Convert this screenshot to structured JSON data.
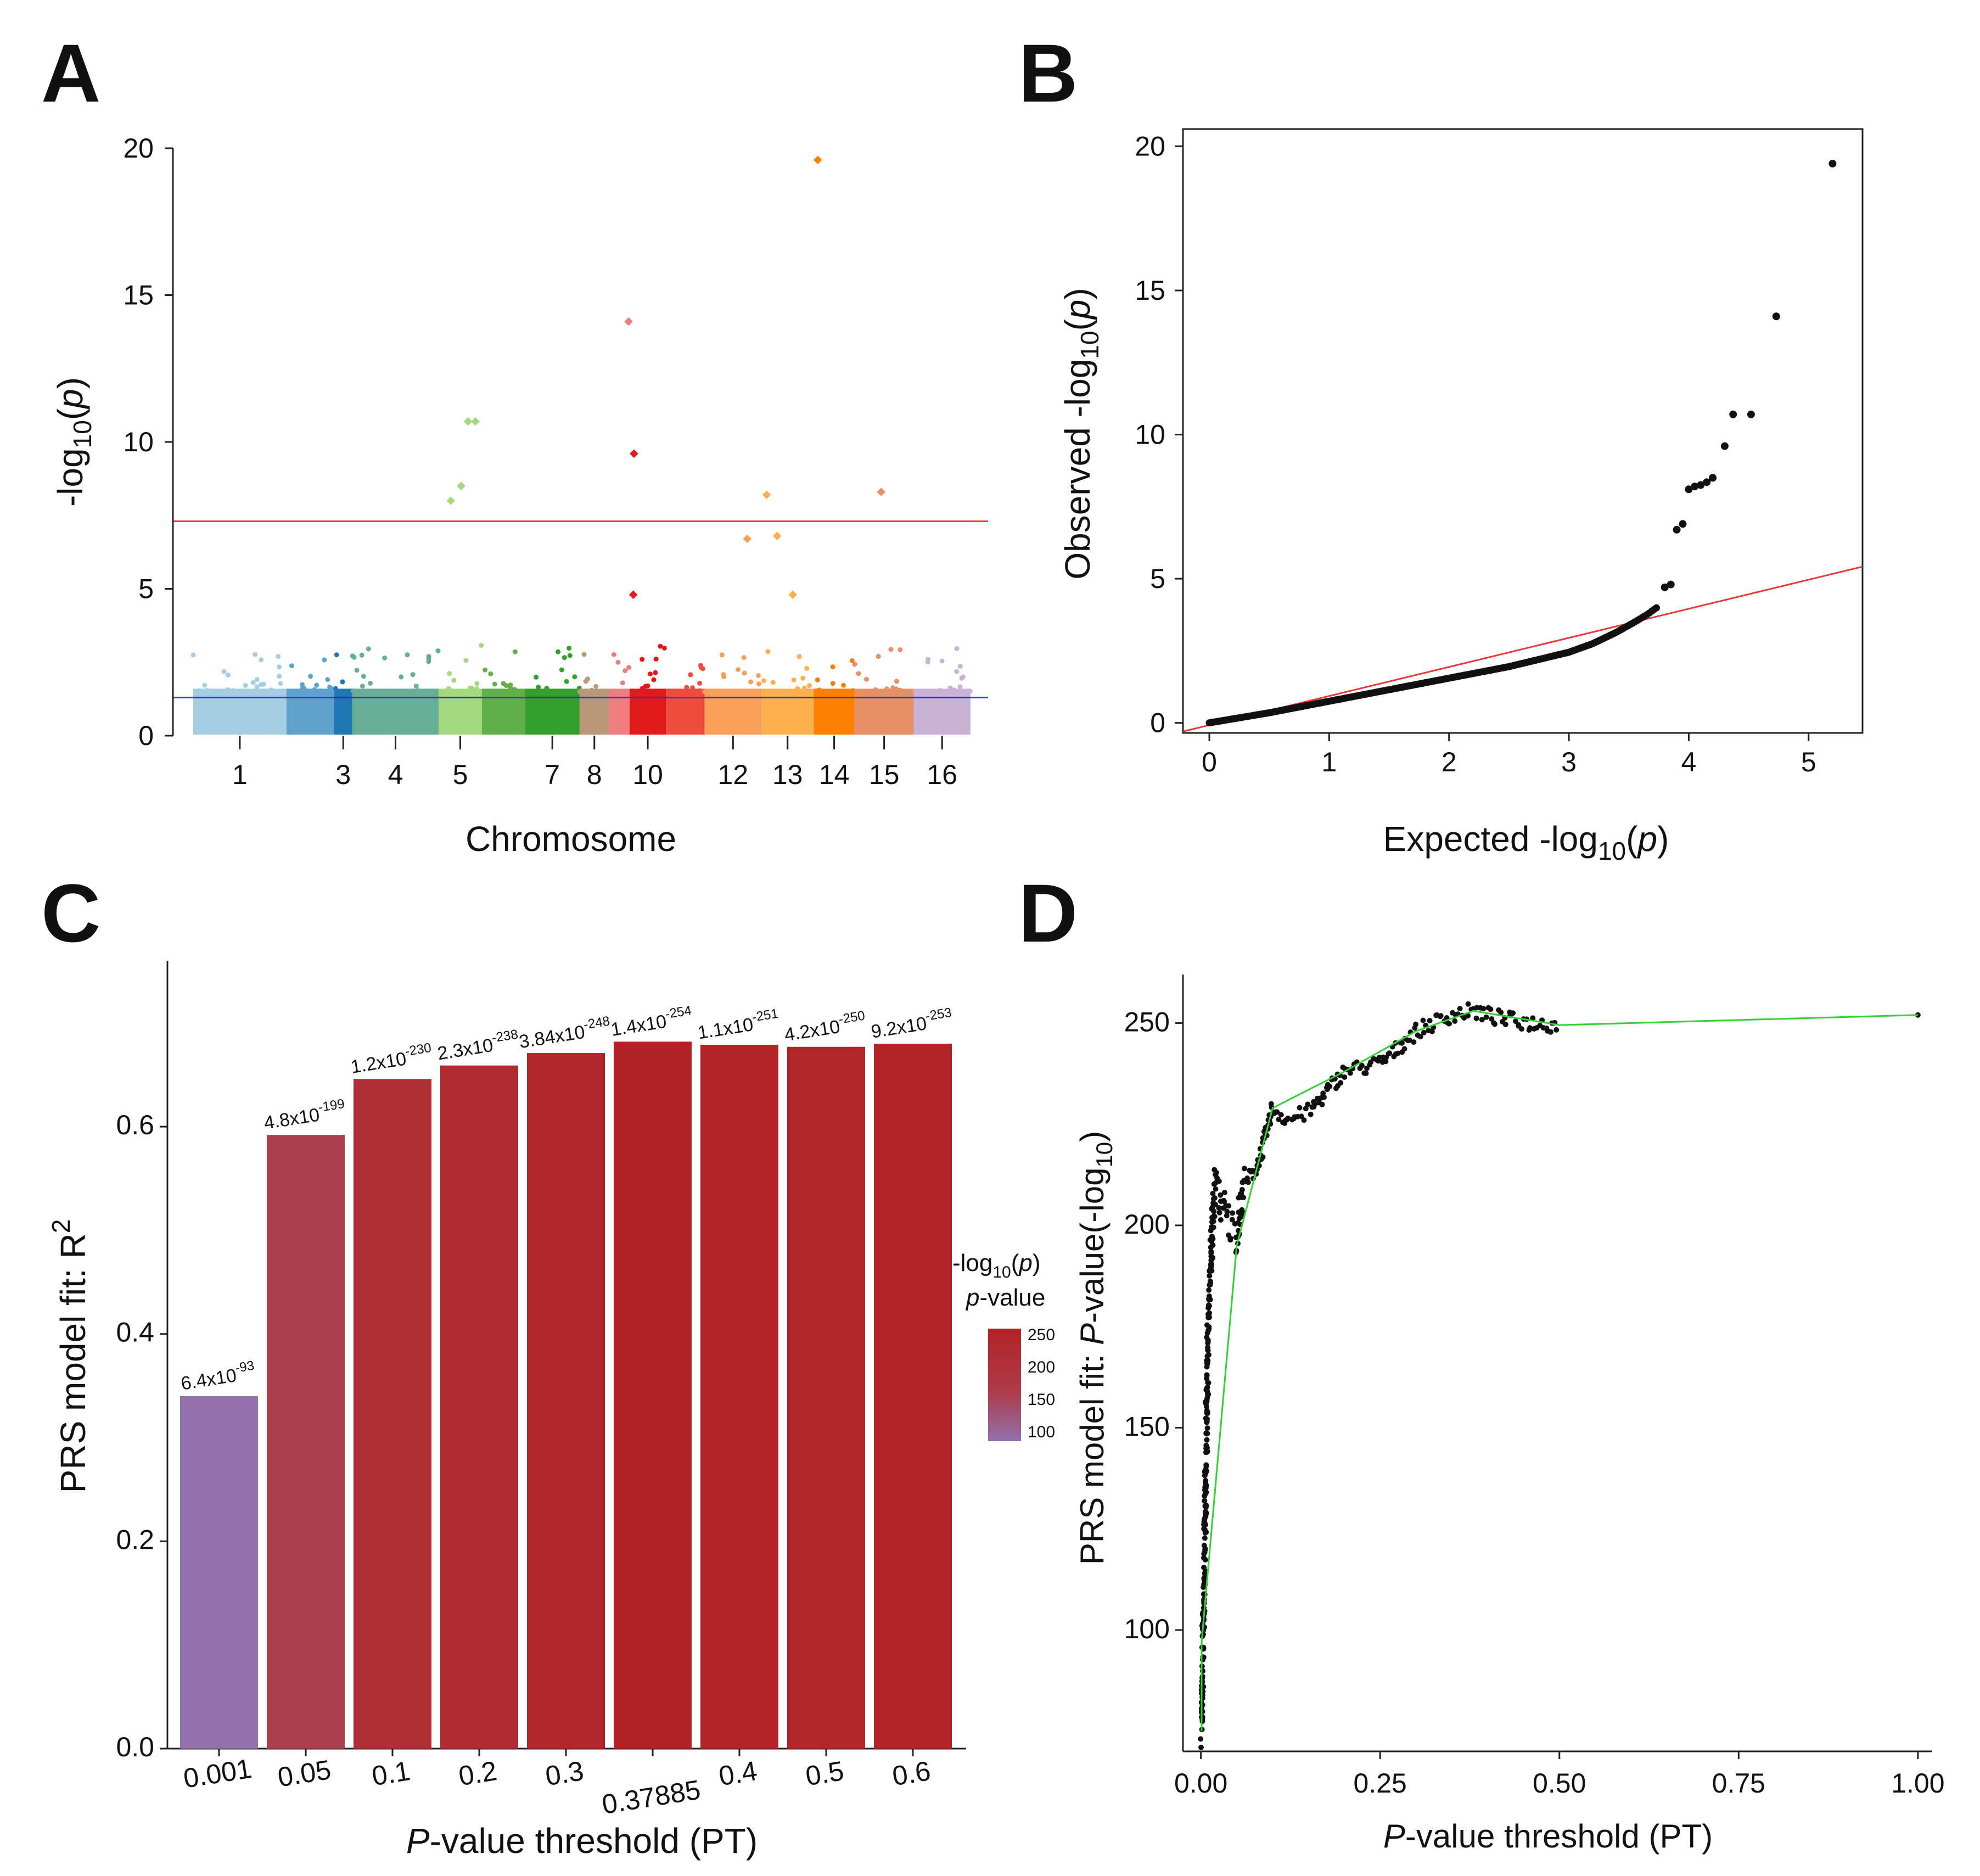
{
  "panels": {
    "A": {
      "label": "A",
      "ylabel": {
        "pre": "-log",
        "sub": "10",
        "mid": "(",
        "it": "p",
        "post": ")"
      },
      "xlabel": "Chromosome"
    },
    "B": {
      "label": "B",
      "ylabel": {
        "pre": "Observed -log",
        "sub": "10",
        "mid": "(",
        "it": "p",
        "post": ")"
      },
      "xlabel": {
        "pre": "Expected -log",
        "sub": "10",
        "mid": "(",
        "it": "p",
        "post": ")"
      }
    },
    "C": {
      "label": "C",
      "ylabel": {
        "pre": "PRS model fit: R",
        "sup": "2"
      },
      "xlabel": {
        "it": "P",
        "post": "-value threshold (PT)"
      },
      "legend": {
        "line1_pre": "-log",
        "line1_sub": "10",
        "line1_mid": "(",
        "line1_it": "p",
        "line1_post": ")",
        "line2_it": "p",
        "line2_post": "-value",
        "ticks": [
          "250",
          "200",
          "150",
          "100"
        ]
      }
    },
    "D": {
      "label": "D",
      "ylabel": {
        "pre": "PRS model fit: ",
        "it": "P",
        "mid": "-value(-log",
        "sub": "10",
        "post": ")"
      },
      "xlabel": {
        "it": "P",
        "post": "-value threshold (PT)"
      }
    }
  },
  "chart_data": [
    {
      "panel": "A",
      "type": "scatter",
      "subtype": "manhattan",
      "xlabel": "Chromosome",
      "ylabel": "-log10(p)",
      "ylim": [
        0,
        20
      ],
      "yticks": [
        0,
        5,
        10,
        15,
        20
      ],
      "xticks": [
        "1",
        "3",
        "4",
        "5",
        "7",
        "8",
        "10",
        "12",
        "13",
        "14",
        "15",
        "16"
      ],
      "chromosomes": [
        "1",
        "2",
        "3",
        "4",
        "5",
        "6",
        "7",
        "8",
        "9",
        "10",
        "11",
        "12",
        "13",
        "14",
        "15",
        "16"
      ],
      "chrom_colors": [
        "#A6CEE3",
        "#5FA2CC",
        "#1F78B4",
        "#66AE96",
        "#A4D97F",
        "#61B04A",
        "#33A02C",
        "#B9987A",
        "#F07C80",
        "#E31A1C",
        "#EE4B3A",
        "#F99F59",
        "#FDB04F",
        "#FF7F00",
        "#E69068",
        "#CAB2D6"
      ],
      "chrom_widths": [
        4.1,
        2.1,
        0.8,
        3.8,
        1.9,
        1.9,
        2.4,
        1.3,
        0.9,
        1.6,
        1.7,
        2.5,
        2.3,
        1.8,
        2.6,
        2.5
      ],
      "peaks": [
        {
          "chrom": "5",
          "pos": 0.28,
          "p": 8.0
        },
        {
          "chrom": "5",
          "pos": 0.52,
          "p": 8.5
        },
        {
          "chrom": "5",
          "pos": 0.68,
          "p": 10.7
        },
        {
          "chrom": "5",
          "pos": 0.85,
          "p": 10.7
        },
        {
          "chrom": "9",
          "pos": 0.95,
          "p": 14.1
        },
        {
          "chrom": "10",
          "pos": 0.12,
          "p": 9.6
        },
        {
          "chrom": "10",
          "pos": 0.1,
          "p": 4.8
        },
        {
          "chrom": "12",
          "pos": 0.75,
          "p": 6.7
        },
        {
          "chrom": "13",
          "pos": 0.1,
          "p": 8.2
        },
        {
          "chrom": "13",
          "pos": 0.3,
          "p": 6.8
        },
        {
          "chrom": "13",
          "pos": 0.6,
          "p": 4.8
        },
        {
          "chrom": "14",
          "pos": 0.1,
          "p": 19.6
        },
        {
          "chrom": "15",
          "pos": 0.45,
          "p": 8.3
        }
      ],
      "hlines": [
        {
          "y": 7.3,
          "color": "#E8383B"
        },
        {
          "y": 1.3,
          "color": "#2E36C8"
        }
      ]
    },
    {
      "panel": "B",
      "type": "scatter",
      "subtype": "qq",
      "xlabel": "Expected -log10(p)",
      "ylabel": "Observed -log10(p)",
      "xlim": [
        -0.22,
        5.45
      ],
      "ylim": [
        -0.35,
        20.6
      ],
      "xticks": [
        0,
        1,
        2,
        3,
        4,
        5
      ],
      "yticks": [
        0,
        5,
        10,
        15,
        20
      ],
      "curve": [
        [
          0,
          0
        ],
        [
          0.5,
          0.35
        ],
        [
          1,
          0.75
        ],
        [
          1.5,
          1.15
        ],
        [
          2,
          1.55
        ],
        [
          2.5,
          1.95
        ],
        [
          3,
          2.45
        ],
        [
          3.2,
          2.75
        ],
        [
          3.4,
          3.15
        ],
        [
          3.55,
          3.5
        ],
        [
          3.65,
          3.75
        ],
        [
          3.75,
          4.05
        ]
      ],
      "outliers": [
        [
          3.8,
          4.7
        ],
        [
          3.85,
          4.8
        ],
        [
          3.9,
          6.7
        ],
        [
          3.95,
          6.9
        ],
        [
          4.0,
          8.1
        ],
        [
          4.05,
          8.2
        ],
        [
          4.1,
          8.25
        ],
        [
          4.15,
          8.35
        ],
        [
          4.2,
          8.5
        ],
        [
          4.3,
          9.6
        ],
        [
          4.37,
          10.7
        ],
        [
          4.52,
          10.7
        ],
        [
          4.73,
          14.1
        ],
        [
          5.2,
          19.4
        ]
      ],
      "diagonal": {
        "slope": 1,
        "intercept": 0,
        "color": "#E8383B"
      }
    },
    {
      "panel": "C",
      "type": "bar",
      "xlabel": "P-value threshold (PT)",
      "ylabel": "PRS model fit: R2",
      "ylim": [
        0,
        0.76
      ],
      "yticks": [
        "0.0",
        "0.2",
        "0.4",
        "0.6"
      ],
      "categories": [
        "0.001",
        "0.05",
        "0.1",
        "0.2",
        "0.3",
        "0.37885",
        "0.4",
        "0.5",
        "0.6"
      ],
      "values": [
        0.34,
        0.592,
        0.646,
        0.659,
        0.671,
        0.682,
        0.679,
        0.677,
        0.68
      ],
      "neglog10p": [
        92.2,
        198.3,
        229.9,
        237.6,
        247.4,
        253.9,
        251.0,
        249.4,
        252.0
      ],
      "labels": [
        {
          "base": "6.4x10",
          "exp": "-93"
        },
        {
          "base": "4.8x10",
          "exp": "-199"
        },
        {
          "base": "1.2x10",
          "exp": "-230"
        },
        {
          "base": "2.3x10",
          "exp": "-238"
        },
        {
          "base": "3.84x10",
          "exp": "-248"
        },
        {
          "base": "1.4x10",
          "exp": "-254"
        },
        {
          "base": "1.1x10",
          "exp": "-251"
        },
        {
          "base": "4.2x10",
          "exp": "-250"
        },
        {
          "base": "9.2x10",
          "exp": "-253"
        }
      ],
      "colorscale": {
        "low": "#9470AC",
        "mid": "#AC3F4E",
        "high": "#B22326",
        "domain": [
          92,
          254
        ]
      }
    },
    {
      "panel": "D",
      "type": "scatter",
      "subtype": "prsice_highres",
      "xlabel": "P-value threshold (PT)",
      "ylabel": "PRS model fit: P-value(-log10)",
      "xlim": [
        -0.025,
        1.02
      ],
      "ylim": [
        70,
        262
      ],
      "xticks": [
        "0.00",
        "0.25",
        "0.50",
        "0.75",
        "1.00"
      ],
      "yticks": [
        "100",
        "150",
        "200",
        "250"
      ],
      "points_curve": [
        [
          0.001,
          75
        ],
        [
          0.002,
          85
        ],
        [
          0.003,
          95
        ],
        [
          0.005,
          115
        ],
        [
          0.008,
          150
        ],
        [
          0.01,
          175
        ],
        [
          0.015,
          195
        ],
        [
          0.02,
          210
        ],
        [
          0.03,
          205
        ],
        [
          0.04,
          200
        ],
        [
          0.05,
          198
        ],
        [
          0.06,
          210
        ],
        [
          0.08,
          215
        ],
        [
          0.1,
          229
        ],
        [
          0.12,
          226
        ],
        [
          0.15,
          228
        ],
        [
          0.18,
          234
        ],
        [
          0.2,
          238
        ],
        [
          0.25,
          240
        ],
        [
          0.3,
          248
        ],
        [
          0.35,
          252
        ],
        [
          0.38,
          253
        ],
        [
          0.42,
          251
        ],
        [
          0.46,
          250
        ],
        [
          0.5,
          249.5
        ],
        [
          1.0,
          252
        ]
      ],
      "green_line": [
        [
          0.001,
          75
        ],
        [
          0.001,
          97
        ],
        [
          0.05,
          195
        ],
        [
          0.1,
          229
        ],
        [
          0.2,
          238
        ],
        [
          0.3,
          248
        ],
        [
          0.38,
          253
        ],
        [
          0.5,
          249.5
        ],
        [
          1.0,
          252
        ]
      ],
      "line_color": "#33D133"
    }
  ]
}
